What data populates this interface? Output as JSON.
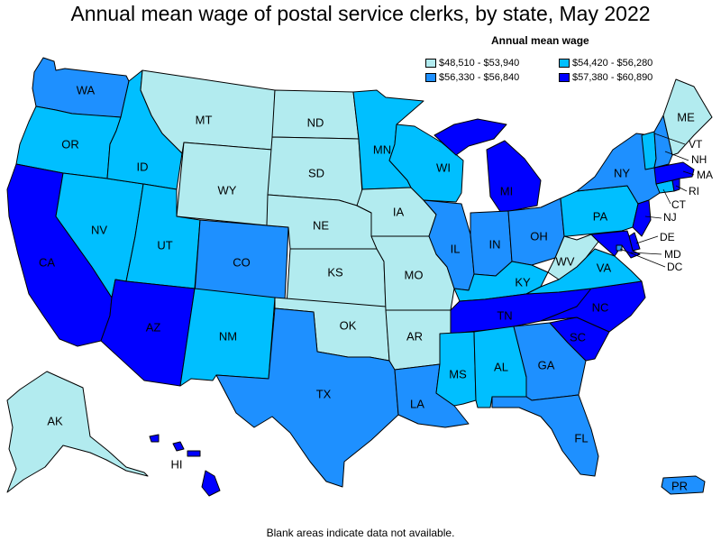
{
  "title": "Annual mean wage of postal service clerks, by state, May 2022",
  "legend": {
    "title": "Annual mean wage",
    "items": [
      {
        "label": "$48,510 - $53,940",
        "color": "#b2ebef"
      },
      {
        "label": "$54,420 - $56,280",
        "color": "#00bfff"
      },
      {
        "label": "$56,330 - $56,840",
        "color": "#1e90ff"
      },
      {
        "label": "$57,380 - $60,890",
        "color": "#0000ff"
      }
    ]
  },
  "footnote": "Blank areas indicate data not available.",
  "states": {
    "WA": 2,
    "OR": 1,
    "CA": 3,
    "NV": 1,
    "ID": 1,
    "MT": 0,
    "WY": 0,
    "UT": 1,
    "AZ": 3,
    "CO": 2,
    "NM": 1,
    "ND": 0,
    "SD": 0,
    "NE": 0,
    "KS": 0,
    "OK": 0,
    "TX": 2,
    "MN": 1,
    "IA": 0,
    "MO": 0,
    "AR": 0,
    "LA": 2,
    "WI": 1,
    "IL": 2,
    "MI": 3,
    "IN": 2,
    "OH": 2,
    "KY": 1,
    "TN": 3,
    "MS": 1,
    "AL": 1,
    "GA": 2,
    "FL": 2,
    "SC": 3,
    "NC": 3,
    "VA": 1,
    "WV": 0,
    "PA": 1,
    "NY": 2,
    "ME": 0,
    "VT": 1,
    "NH": 2,
    "MA": 3,
    "RI": 3,
    "CT": 1,
    "NJ": 3,
    "DE": 3,
    "MD": 3,
    "DC": 2,
    "AK": 0,
    "HI": 3,
    "PR": 2
  },
  "labels": {
    "WA": "WA",
    "OR": "OR",
    "CA": "CA",
    "NV": "NV",
    "ID": "ID",
    "MT": "MT",
    "WY": "WY",
    "UT": "UT",
    "AZ": "AZ",
    "CO": "CO",
    "NM": "NM",
    "ND": "ND",
    "SD": "SD",
    "NE": "NE",
    "KS": "KS",
    "OK": "OK",
    "TX": "TX",
    "MN": "MN",
    "IA": "IA",
    "MO": "MO",
    "AR": "AR",
    "LA": "LA",
    "WI": "WI",
    "IL": "IL",
    "MI": "MI",
    "IN": "IN",
    "OH": "OH",
    "KY": "KY",
    "TN": "TN",
    "MS": "MS",
    "AL": "AL",
    "GA": "GA",
    "FL": "FL",
    "SC": "SC",
    "NC": "NC",
    "VA": "VA",
    "WV": "WV",
    "PA": "PA",
    "NY": "NY",
    "ME": "ME",
    "AK": "AK",
    "HI": "HI",
    "PR": "PR",
    "VT": "VT",
    "NH": "NH",
    "MA": "MA",
    "RI": "RI",
    "CT": "CT",
    "NJ": "NJ",
    "DE": "DE",
    "MD": "MD",
    "DC": "DC"
  }
}
